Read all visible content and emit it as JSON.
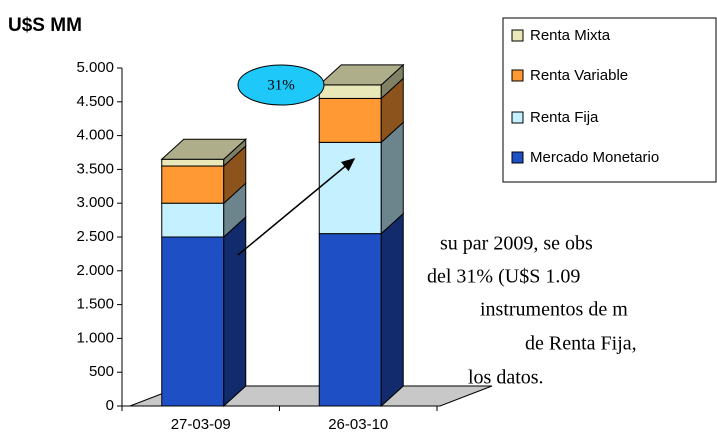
{
  "chart_data": {
    "type": "bar3d_stacked",
    "y_label": "U$S MM",
    "categories": [
      "27-03-09",
      "26-03-10"
    ],
    "series": [
      {
        "name": "Mercado Monetario",
        "color": "#1f4fc4",
        "values": [
          2500,
          2550
        ]
      },
      {
        "name": "Renta Fija",
        "color": "#c4f0ff",
        "values": [
          500,
          1350
        ]
      },
      {
        "name": "Renta Variable",
        "color": "#ff9933",
        "values": [
          550,
          650
        ]
      },
      {
        "name": "Renta Mixta",
        "color": "#e8e8b8",
        "values": [
          100,
          200
        ]
      }
    ],
    "ylim": [
      0,
      5000
    ],
    "yticks": [
      0,
      500,
      {
        "value": 1000,
        "label": "1.000"
      },
      {
        "value": 1500,
        "label": "1.500"
      },
      {
        "value": 2000,
        "label": "2.000"
      },
      {
        "value": 2500,
        "label": "2.500"
      },
      {
        "value": 3000,
        "label": "3.000"
      },
      {
        "value": 3500,
        "label": "3.500"
      },
      {
        "value": 4000,
        "label": "4.000"
      },
      {
        "value": 4500,
        "label": "4.500"
      },
      {
        "value": 5000,
        "label": "5.000"
      }
    ],
    "annotation": "31%",
    "background_text": [
      "su par 2009, se obs",
      "del 31% (U$S 1.09",
      "instrumentos de m",
      "de Renta Fija, ",
      "los datos."
    ]
  }
}
